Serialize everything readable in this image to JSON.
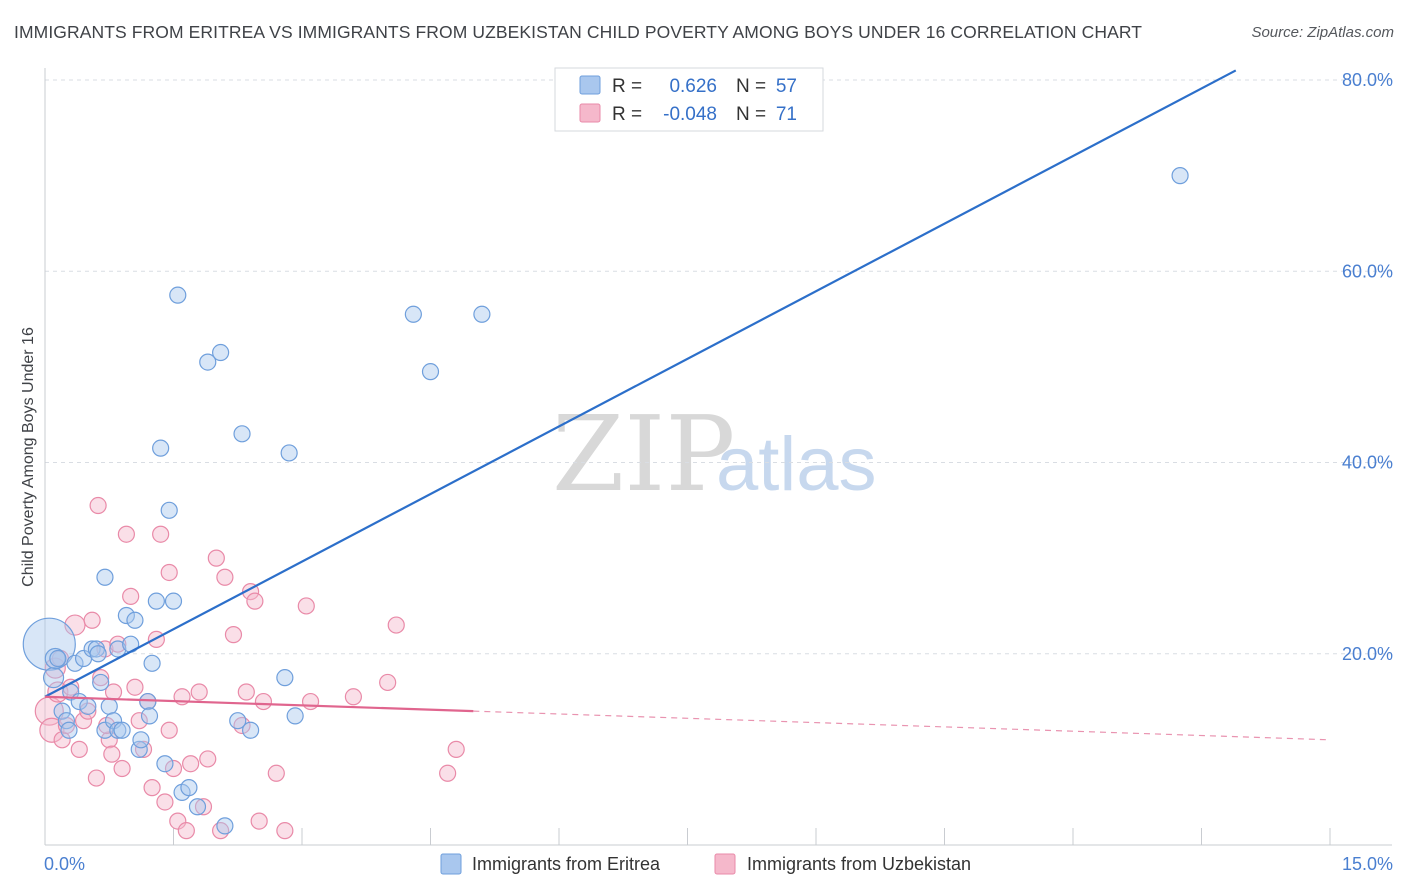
{
  "header": {
    "title": "IMMIGRANTS FROM ERITREA VS IMMIGRANTS FROM UZBEKISTAN CHILD POVERTY AMONG BOYS UNDER 16 CORRELATION CHART",
    "source": "Source: ZipAtlas.com"
  },
  "watermark": {
    "zip": "ZIP",
    "atlas": "atlas"
  },
  "legend": {
    "r_label": "R =",
    "n_label": "N =",
    "eritrea": {
      "r": "0.626",
      "n": "57"
    },
    "uzbekistan": {
      "r": "-0.048",
      "n": "71"
    }
  },
  "colors": {
    "eritrea_fill": "#a9c7ee",
    "eritrea_stroke": "#6f9fdc",
    "eritrea_line": "#2c6fca",
    "uzbek_fill": "#f5b8cb",
    "uzbek_stroke": "#e98aa8",
    "uzbek_line": "#e0658e",
    "axis_text": "#4a7fd0",
    "grid": "#d9dde3"
  },
  "chart_data": {
    "type": "scatter",
    "title": "IMMIGRANTS FROM ERITREA VS IMMIGRANTS FROM UZBEKISTAN CHILD POVERTY AMONG BOYS UNDER 16 CORRELATION CHART",
    "xlabel": "",
    "ylabel": "Child Poverty Among Boys Under 16",
    "xlim": [
      0,
      15
    ],
    "ylim": [
      0,
      80
    ],
    "x_tick_labels": [
      "0.0%",
      "15.0%"
    ],
    "y_ticks": [
      20,
      40,
      60,
      80
    ],
    "y_tick_labels": [
      "20.0%",
      "40.0%",
      "60.0%",
      "80.0%"
    ],
    "grid": true,
    "series": [
      {
        "name": "Immigrants from Eritrea",
        "color": "#6f9fdc",
        "trend": {
          "x": [
            0,
            13.9
          ],
          "y": [
            15.5,
            81
          ]
        },
        "points": [
          [
            0.05,
            21,
            26
          ],
          [
            0.1,
            17.5,
            10
          ],
          [
            0.12,
            19.5,
            10
          ],
          [
            0.15,
            19.5,
            8
          ],
          [
            0.2,
            14,
            8
          ],
          [
            0.25,
            13,
            8
          ],
          [
            0.28,
            12,
            8
          ],
          [
            0.3,
            16,
            8
          ],
          [
            0.35,
            19,
            8
          ],
          [
            0.4,
            15,
            8
          ],
          [
            0.45,
            19.5,
            8
          ],
          [
            0.5,
            14.5,
            8
          ],
          [
            0.55,
            20.5,
            8
          ],
          [
            0.6,
            20.5,
            8
          ],
          [
            0.62,
            20,
            8
          ],
          [
            0.65,
            17,
            8
          ],
          [
            0.7,
            12,
            8
          ],
          [
            0.7,
            28,
            8
          ],
          [
            0.75,
            14.5,
            8
          ],
          [
            0.8,
            13,
            8
          ],
          [
            0.85,
            12,
            8
          ],
          [
            0.85,
            20.5,
            8
          ],
          [
            0.9,
            12,
            8
          ],
          [
            0.95,
            24,
            8
          ],
          [
            1.0,
            21,
            8
          ],
          [
            1.05,
            23.5,
            8
          ],
          [
            1.1,
            10,
            8
          ],
          [
            1.12,
            11,
            8
          ],
          [
            1.2,
            15,
            8
          ],
          [
            1.22,
            13.5,
            8
          ],
          [
            1.25,
            19,
            8
          ],
          [
            1.3,
            25.5,
            8
          ],
          [
            1.35,
            41.5,
            8
          ],
          [
            1.4,
            8.5,
            8
          ],
          [
            1.45,
            35,
            8
          ],
          [
            1.5,
            25.5,
            8
          ],
          [
            1.55,
            57.5,
            8
          ],
          [
            1.6,
            5.5,
            8
          ],
          [
            1.68,
            6,
            8
          ],
          [
            1.78,
            4,
            8
          ],
          [
            1.9,
            50.5,
            8
          ],
          [
            2.05,
            51.5,
            8
          ],
          [
            2.1,
            2,
            8
          ],
          [
            2.25,
            13,
            8
          ],
          [
            2.3,
            43,
            8
          ],
          [
            2.4,
            12,
            8
          ],
          [
            2.8,
            17.5,
            8
          ],
          [
            2.85,
            41,
            8
          ],
          [
            2.92,
            13.5,
            8
          ],
          [
            4.3,
            55.5,
            8
          ],
          [
            4.5,
            49.5,
            8
          ],
          [
            5.1,
            55.5,
            8
          ],
          [
            13.25,
            70,
            8
          ]
        ]
      },
      {
        "name": "Immigrants from Uzbekistan",
        "color": "#e98aa8",
        "trend": {
          "x": [
            0,
            5
          ],
          "y": [
            15.5,
            14
          ]
        },
        "trend_dashed": {
          "x": [
            5,
            15
          ],
          "y": [
            14,
            11
          ]
        },
        "points": [
          [
            0.05,
            14,
            14
          ],
          [
            0.08,
            12,
            12
          ],
          [
            0.12,
            18.5,
            10
          ],
          [
            0.15,
            16,
            10
          ],
          [
            0.18,
            19.5,
            8
          ],
          [
            0.2,
            11,
            8
          ],
          [
            0.25,
            12.5,
            8
          ],
          [
            0.3,
            16.5,
            8
          ],
          [
            0.35,
            23,
            10
          ],
          [
            0.4,
            10,
            8
          ],
          [
            0.45,
            13,
            8
          ],
          [
            0.5,
            14,
            8
          ],
          [
            0.55,
            23.5,
            8
          ],
          [
            0.6,
            7,
            8
          ],
          [
            0.65,
            17.5,
            8
          ],
          [
            0.62,
            35.5,
            8
          ],
          [
            0.7,
            20.5,
            8
          ],
          [
            0.75,
            11,
            8
          ],
          [
            0.78,
            9.5,
            8
          ],
          [
            0.8,
            16,
            8
          ],
          [
            0.85,
            21,
            8
          ],
          [
            0.9,
            8,
            8
          ],
          [
            0.95,
            32.5,
            8
          ],
          [
            1.0,
            26,
            8
          ],
          [
            1.05,
            16.5,
            8
          ],
          [
            1.1,
            13,
            8
          ],
          [
            1.15,
            10,
            8
          ],
          [
            1.2,
            15,
            8
          ],
          [
            1.25,
            6,
            8
          ],
          [
            1.3,
            21.5,
            8
          ],
          [
            1.35,
            32.5,
            8
          ],
          [
            1.4,
            4.5,
            8
          ],
          [
            1.45,
            28.5,
            8
          ],
          [
            1.5,
            8,
            8
          ],
          [
            1.55,
            2.5,
            8
          ],
          [
            1.6,
            15.5,
            8
          ],
          [
            1.65,
            1.5,
            8
          ],
          [
            1.7,
            8.5,
            8
          ],
          [
            1.8,
            16,
            8
          ],
          [
            1.85,
            4,
            8
          ],
          [
            1.9,
            9,
            8
          ],
          [
            2.0,
            30,
            8
          ],
          [
            2.05,
            1.5,
            8
          ],
          [
            2.1,
            28,
            8
          ],
          [
            2.2,
            22,
            8
          ],
          [
            2.3,
            12.5,
            8
          ],
          [
            2.35,
            16,
            8
          ],
          [
            2.4,
            26.5,
            8
          ],
          [
            2.45,
            25.5,
            8
          ],
          [
            2.5,
            2.5,
            8
          ],
          [
            2.55,
            15,
            8
          ],
          [
            2.7,
            7.5,
            8
          ],
          [
            2.8,
            1.5,
            8
          ],
          [
            3.05,
            25,
            8
          ],
          [
            3.1,
            15,
            8
          ],
          [
            3.6,
            15.5,
            8
          ],
          [
            4.0,
            17,
            8
          ],
          [
            4.1,
            23,
            8
          ],
          [
            4.7,
            7.5,
            8
          ],
          [
            4.8,
            10,
            8
          ],
          [
            1.45,
            12,
            8
          ],
          [
            0.72,
            12.5,
            8
          ]
        ]
      }
    ]
  },
  "bottom_legend": {
    "eritrea": "Immigrants from Eritrea",
    "uzbekistan": "Immigrants from Uzbekistan"
  }
}
